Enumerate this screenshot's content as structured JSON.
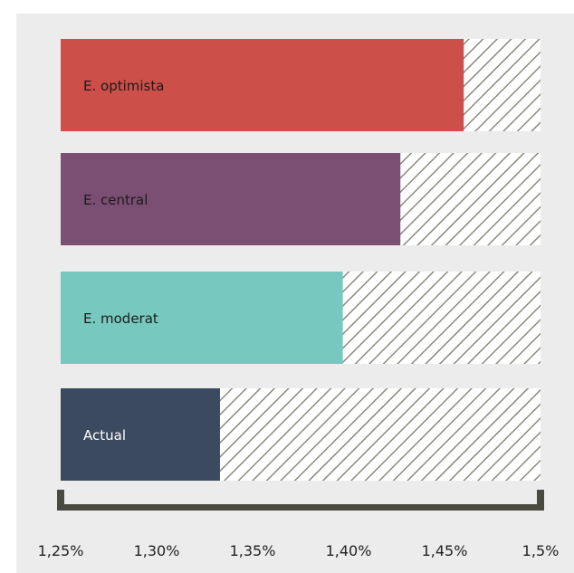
{
  "chart_data": {
    "type": "bar",
    "orientation": "horizontal",
    "categories": [
      "E. optimista",
      "E. central",
      "E. moderat",
      "Actual"
    ],
    "values": [
      1.46,
      1.427,
      1.397,
      1.333
    ],
    "colors": [
      "#cc4f49",
      "#7b4e73",
      "#77c9bf",
      "#3b4a5e"
    ],
    "label_colors": [
      "#1b1b1b",
      "#1b1b1b",
      "#1b1b1b",
      "#ffffff"
    ],
    "x_tick_labels": [
      "1,25%",
      "1,30%",
      "1,35%",
      "1,40%",
      "1,45%",
      "1,5%"
    ],
    "x_tick_values": [
      1.25,
      1.3,
      1.35,
      1.4,
      1.45,
      1.5
    ],
    "xlim": [
      1.25,
      1.5
    ],
    "remainder_pattern": "diagonal-hatch",
    "hatch_color": "#8a8a80",
    "axis_bracket_color": "#4a4a40",
    "title": "",
    "xlabel": "",
    "ylabel": "",
    "grid": false,
    "legend": "none"
  }
}
